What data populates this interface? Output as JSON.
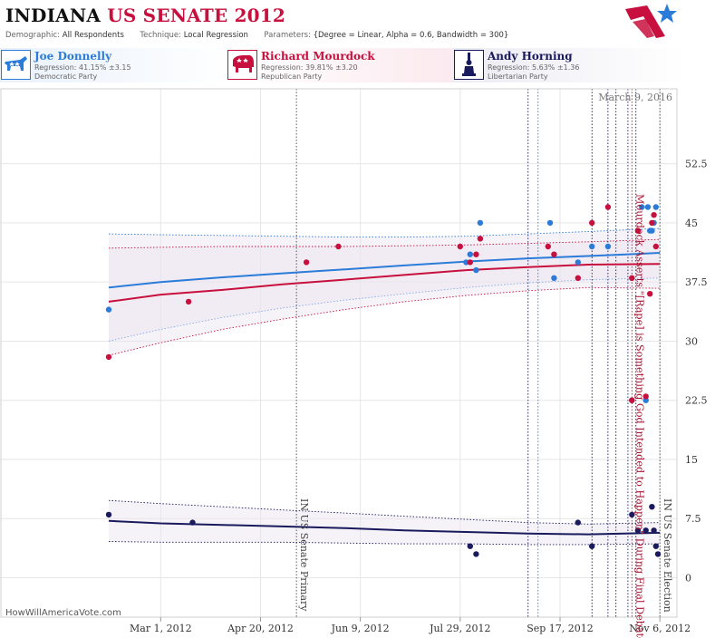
{
  "header": {
    "title_state": "INDIANA",
    "title_race": "US SENATE 2012",
    "demographic_label": "Demographic:",
    "demographic_value": "All Respondents",
    "technique_label": "Technique:",
    "technique_value": "Local Regression",
    "parameters_label": "Parameters:",
    "parameters_value": "{Degree = Linear, Alpha = 0.6, Bandwidth = 300}"
  },
  "candidates": [
    {
      "name": "Joe Donnelly",
      "regression": "Regression: 41.15% ±3.15",
      "party": "Democratic Party",
      "color": "#2b7bd8",
      "icon": "donkey-icon"
    },
    {
      "name": "Richard Mourdock",
      "regression": "Regression: 39.81% ±3.20",
      "party": "Republican Party",
      "color": "#c8103e",
      "icon": "elephant-icon"
    },
    {
      "name": "Andy Horning",
      "regression": "Regression: 5.63% ±1.36",
      "party": "Libertarian Party",
      "color": "#1a1a5e",
      "icon": "statue-of-liberty-icon"
    }
  ],
  "chart_data": {
    "type": "scatter",
    "date_stamp": "March 9, 2016",
    "watermark": "HowWillAmericaVote.com",
    "x_range": [
      "2012-02-04",
      "2012-11-15"
    ],
    "x_ticks": [
      {
        "date": "2012-03-01",
        "label": "Mar 1, 2012"
      },
      {
        "date": "2012-04-20",
        "label": "Apr 20, 2012"
      },
      {
        "date": "2012-06-09",
        "label": "Jun 9, 2012"
      },
      {
        "date": "2012-07-29",
        "label": "Jul 29, 2012"
      },
      {
        "date": "2012-09-17",
        "label": "Sep 17, 2012"
      },
      {
        "date": "2012-11-06",
        "label": "Nov 6, 2012"
      }
    ],
    "y_range": [
      -5,
      62
    ],
    "y_ticks": [
      {
        "value": 0,
        "label": "0"
      },
      {
        "value": 7.5,
        "label": "7.5"
      },
      {
        "value": 15,
        "label": "15"
      },
      {
        "value": 22.5,
        "label": "22.5"
      },
      {
        "value": 30,
        "label": "30"
      },
      {
        "value": 37.5,
        "label": "37.5"
      },
      {
        "value": 45,
        "label": "45"
      },
      {
        "value": 52.5,
        "label": "52.5"
      }
    ],
    "events": [
      {
        "date": "2012-05-08",
        "color": "#444444",
        "label": "IN US Senate Primary",
        "label_color": "#444444"
      },
      {
        "date": "2012-10-23",
        "color": "#c8103e",
        "label": "Mourdock Asserts \"[Rape] is Something God Intended to Happen\" During Final Debate",
        "label_color": "#a8102e"
      },
      {
        "date": "2012-11-06",
        "color": "#444444",
        "label": "IN US Senate Election",
        "label_color": "#444444"
      }
    ],
    "debate_lines": [
      {
        "date": "2012-09-01",
        "color": "#1a1a5e"
      },
      {
        "date": "2012-09-06",
        "color": "#2b7bd8"
      },
      {
        "date": "2012-10-03",
        "color": "#1a1a5e"
      },
      {
        "date": "2012-10-11",
        "color": "#1a1a5e"
      },
      {
        "date": "2012-10-15",
        "color": "#1a1a5e"
      },
      {
        "date": "2012-10-21",
        "color": "#1a1a5e"
      },
      {
        "date": "2012-10-25",
        "color": "#1a1a5e"
      }
    ],
    "series": [
      {
        "name": "Joe Donnelly",
        "color": "#2b7bd8",
        "trend": [
          [
            "2012-02-04",
            36.8
          ],
          [
            "2012-03-01",
            37.5
          ],
          [
            "2012-04-01",
            38.1
          ],
          [
            "2012-05-01",
            38.6
          ],
          [
            "2012-06-01",
            39.1
          ],
          [
            "2012-07-01",
            39.6
          ],
          [
            "2012-08-01",
            40.1
          ],
          [
            "2012-09-01",
            40.5
          ],
          [
            "2012-10-01",
            40.8
          ],
          [
            "2012-10-20",
            41.0
          ],
          [
            "2012-11-06",
            41.2
          ]
        ],
        "band_upper": [
          [
            "2012-02-04",
            43.6
          ],
          [
            "2012-03-01",
            43.5
          ],
          [
            "2012-04-01",
            43.4
          ],
          [
            "2012-05-01",
            43.3
          ],
          [
            "2012-06-01",
            43.2
          ],
          [
            "2012-07-01",
            43.2
          ],
          [
            "2012-08-01",
            43.3
          ],
          [
            "2012-09-01",
            43.6
          ],
          [
            "2012-10-01",
            43.9
          ],
          [
            "2012-11-06",
            44.3
          ]
        ],
        "band_lower": [
          [
            "2012-02-04",
            30.0
          ],
          [
            "2012-03-01",
            31.5
          ],
          [
            "2012-04-01",
            33.0
          ],
          [
            "2012-05-01",
            34.2
          ],
          [
            "2012-06-01",
            35.2
          ],
          [
            "2012-07-01",
            36.0
          ],
          [
            "2012-08-01",
            36.8
          ],
          [
            "2012-09-01",
            37.4
          ],
          [
            "2012-10-01",
            37.8
          ],
          [
            "2012-11-06",
            38.0
          ]
        ],
        "points": [
          [
            "2012-02-04",
            34.0
          ],
          [
            "2012-08-01",
            40.0
          ],
          [
            "2012-08-03",
            41.0
          ],
          [
            "2012-08-06",
            39.0
          ],
          [
            "2012-08-08",
            45.0
          ],
          [
            "2012-09-12",
            45.0
          ],
          [
            "2012-09-14",
            38.0
          ],
          [
            "2012-09-26",
            40.0
          ],
          [
            "2012-10-03",
            42.0
          ],
          [
            "2012-10-11",
            42.0
          ],
          [
            "2012-10-23",
            22.5
          ],
          [
            "2012-10-28",
            47.0
          ],
          [
            "2012-10-30",
            22.5
          ],
          [
            "2012-10-31",
            47.0
          ],
          [
            "2012-11-01",
            44.0
          ],
          [
            "2012-11-02",
            44.0
          ],
          [
            "2012-11-03",
            45.0
          ],
          [
            "2012-11-04",
            47.0
          ]
        ]
      },
      {
        "name": "Richard Mourdock",
        "color": "#c8103e",
        "trend": [
          [
            "2012-02-04",
            35.0
          ],
          [
            "2012-03-01",
            35.9
          ],
          [
            "2012-04-01",
            36.5
          ],
          [
            "2012-05-01",
            37.2
          ],
          [
            "2012-06-01",
            37.8
          ],
          [
            "2012-07-01",
            38.4
          ],
          [
            "2012-08-01",
            39.0
          ],
          [
            "2012-09-01",
            39.4
          ],
          [
            "2012-10-01",
            39.7
          ],
          [
            "2012-11-06",
            39.8
          ]
        ],
        "band_upper": [
          [
            "2012-02-04",
            41.8
          ],
          [
            "2012-03-01",
            41.9
          ],
          [
            "2012-04-01",
            42.0
          ],
          [
            "2012-05-01",
            42.0
          ],
          [
            "2012-06-01",
            42.0
          ],
          [
            "2012-07-01",
            42.1
          ],
          [
            "2012-08-01",
            42.2
          ],
          [
            "2012-09-01",
            42.4
          ],
          [
            "2012-10-01",
            42.6
          ],
          [
            "2012-11-06",
            42.9
          ]
        ],
        "band_lower": [
          [
            "2012-02-04",
            28.2
          ],
          [
            "2012-03-01",
            29.8
          ],
          [
            "2012-04-01",
            31.5
          ],
          [
            "2012-05-01",
            32.8
          ],
          [
            "2012-06-01",
            34.0
          ],
          [
            "2012-07-01",
            35.0
          ],
          [
            "2012-08-01",
            35.8
          ],
          [
            "2012-09-01",
            36.4
          ],
          [
            "2012-10-01",
            36.8
          ],
          [
            "2012-11-06",
            36.7
          ]
        ],
        "points": [
          [
            "2012-02-04",
            28.0
          ],
          [
            "2012-03-15",
            35.0
          ],
          [
            "2012-05-13",
            40.0
          ],
          [
            "2012-05-29",
            42.0
          ],
          [
            "2012-07-29",
            42.0
          ],
          [
            "2012-08-03",
            40.0
          ],
          [
            "2012-08-06",
            41.0
          ],
          [
            "2012-08-08",
            43.0
          ],
          [
            "2012-09-11",
            42.0
          ],
          [
            "2012-09-14",
            41.0
          ],
          [
            "2012-09-26",
            38.0
          ],
          [
            "2012-10-03",
            45.0
          ],
          [
            "2012-10-11",
            47.0
          ],
          [
            "2012-10-23",
            38.0
          ],
          [
            "2012-10-23",
            22.5
          ],
          [
            "2012-10-26",
            44.0
          ],
          [
            "2012-10-30",
            23.0
          ],
          [
            "2012-11-01",
            36.0
          ],
          [
            "2012-11-02",
            45.0
          ],
          [
            "2012-11-03",
            46.0
          ],
          [
            "2012-11-04",
            42.0
          ]
        ]
      },
      {
        "name": "Andy Horning",
        "color": "#1a1a5e",
        "trend": [
          [
            "2012-02-04",
            7.2
          ],
          [
            "2012-03-01",
            6.9
          ],
          [
            "2012-04-01",
            6.7
          ],
          [
            "2012-05-01",
            6.5
          ],
          [
            "2012-06-01",
            6.3
          ],
          [
            "2012-07-01",
            6.0
          ],
          [
            "2012-08-01",
            5.8
          ],
          [
            "2012-09-01",
            5.6
          ],
          [
            "2012-10-01",
            5.5
          ],
          [
            "2012-11-06",
            5.7
          ]
        ],
        "band_upper": [
          [
            "2012-02-04",
            9.8
          ],
          [
            "2012-03-01",
            9.4
          ],
          [
            "2012-04-01",
            9.0
          ],
          [
            "2012-05-01",
            8.6
          ],
          [
            "2012-06-01",
            8.2
          ],
          [
            "2012-07-01",
            7.8
          ],
          [
            "2012-08-01",
            7.4
          ],
          [
            "2012-09-01",
            7.0
          ],
          [
            "2012-10-01",
            6.8
          ],
          [
            "2012-11-06",
            7.0
          ]
        ],
        "band_lower": [
          [
            "2012-02-04",
            4.6
          ],
          [
            "2012-03-01",
            4.5
          ],
          [
            "2012-04-01",
            4.5
          ],
          [
            "2012-05-01",
            4.5
          ],
          [
            "2012-06-01",
            4.4
          ],
          [
            "2012-07-01",
            4.3
          ],
          [
            "2012-08-01",
            4.3
          ],
          [
            "2012-09-01",
            4.2
          ],
          [
            "2012-10-01",
            4.2
          ],
          [
            "2012-11-06",
            4.3
          ]
        ],
        "points": [
          [
            "2012-02-04",
            8.0
          ],
          [
            "2012-03-17",
            7.0
          ],
          [
            "2012-08-03",
            4.0
          ],
          [
            "2012-08-06",
            3.0
          ],
          [
            "2012-09-26",
            7.0
          ],
          [
            "2012-10-03",
            4.0
          ],
          [
            "2012-10-23",
            8.0
          ],
          [
            "2012-10-26",
            6.0
          ],
          [
            "2012-10-30",
            6.0
          ],
          [
            "2012-11-02",
            9.0
          ],
          [
            "2012-11-03",
            6.0
          ],
          [
            "2012-11-04",
            4.0
          ],
          [
            "2012-11-05",
            3.0
          ]
        ]
      }
    ]
  }
}
